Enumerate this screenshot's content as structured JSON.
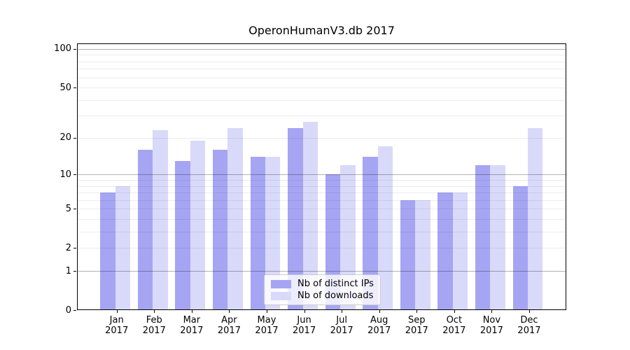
{
  "chart_data": {
    "type": "bar",
    "title": "OperonHumanV3.db 2017",
    "categories": [
      "Jan 2017",
      "Feb 2017",
      "Mar 2017",
      "Apr 2017",
      "May 2017",
      "Jun 2017",
      "Jul 2017",
      "Aug 2017",
      "Sep 2017",
      "Oct 2017",
      "Nov 2017",
      "Dec 2017"
    ],
    "series": [
      {
        "name": "Nb of distinct IPs",
        "color": "#a5a5f3",
        "values": [
          7,
          16,
          13,
          16,
          14,
          24,
          10,
          14,
          6,
          7,
          12,
          8
        ]
      },
      {
        "name": "Nb of downloads",
        "color": "#d9d9fa",
        "values": [
          8,
          23,
          19,
          24,
          14,
          27,
          12,
          17,
          6,
          7,
          12,
          24
        ]
      }
    ],
    "xlabel": "",
    "ylabel": "",
    "yscale": "log1p",
    "ylim": [
      0,
      110
    ],
    "yticks": [
      0,
      1,
      2,
      5,
      10,
      20,
      50,
      100
    ],
    "major_gridlines": [
      1,
      10,
      100
    ],
    "minor_gridlines": [
      2,
      3,
      4,
      5,
      6,
      7,
      8,
      9,
      20,
      30,
      40,
      50,
      60,
      70,
      80,
      90
    ],
    "grid": true,
    "legend_position": "lower center"
  }
}
